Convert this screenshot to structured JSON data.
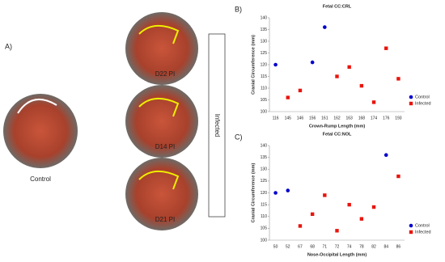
{
  "panel_a": {
    "label": "A)",
    "control_label": "Control",
    "infected_label": "Infected",
    "photos": [
      "D22 PI",
      "D14 PI",
      "D21 PI"
    ]
  },
  "chart_data": [
    {
      "type": "scatter",
      "panel": "B)",
      "title": "Fetal CC:CRL",
      "x_label": "Crown-Rump Length (mm)",
      "y_label": "Cranial Circumference (mm)",
      "categories": [
        "116",
        "145",
        "146",
        "156",
        "161",
        "162",
        "163",
        "168",
        "174",
        "176",
        "193"
      ],
      "series": [
        {
          "name": "Control",
          "color": "#0000cc",
          "marker": "circle",
          "values": [
            120,
            null,
            null,
            121,
            136,
            null,
            null,
            null,
            null,
            null,
            null
          ]
        },
        {
          "name": "Infected",
          "color": "#e8150d",
          "marker": "square",
          "values": [
            null,
            106,
            109,
            null,
            null,
            115,
            119,
            111,
            104,
            127,
            114
          ]
        }
      ],
      "ylim": [
        100,
        140
      ],
      "yticks": [
        100,
        105,
        110,
        115,
        120,
        125,
        130,
        135,
        140
      ],
      "legend": "lower right"
    },
    {
      "type": "scatter",
      "panel": "C)",
      "title": "Fetal CC:NOL",
      "x_label": "Nose-Occipital Length (mm)",
      "y_label": "Cranial Circumference (mm)",
      "categories": [
        "50",
        "52",
        "67",
        "68",
        "71",
        "72",
        "74",
        "78",
        "82",
        "84",
        "86"
      ],
      "series": [
        {
          "name": "Control",
          "color": "#0000cc",
          "marker": "circle",
          "values": [
            120,
            121,
            null,
            null,
            null,
            null,
            null,
            null,
            null,
            136,
            null
          ]
        },
        {
          "name": "Infected",
          "color": "#e8150d",
          "marker": "square",
          "values": [
            null,
            null,
            106,
            111,
            119,
            104,
            115,
            109,
            114,
            null,
            127
          ]
        }
      ],
      "ylim": [
        100,
        140
      ],
      "yticks": [
        100,
        105,
        110,
        115,
        120,
        125,
        130,
        135,
        140
      ],
      "legend": "lower right"
    }
  ]
}
